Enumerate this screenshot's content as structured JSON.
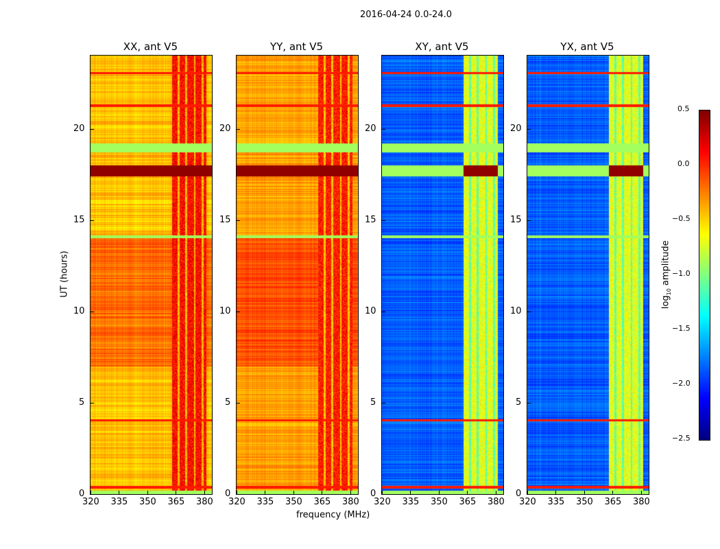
{
  "figure_title": "2016-04-24 0.0-24.0",
  "chart_data": {
    "type": "heatmap",
    "xlabel": "frequency (MHz)",
    "ylabel": "UT (hours)",
    "xlim": [
      320,
      384
    ],
    "ylim": [
      0,
      24
    ],
    "xticks": [
      "320",
      "335",
      "350",
      "365",
      "380"
    ],
    "yticks": [
      "0",
      "5",
      "10",
      "15",
      "20"
    ],
    "colormap": "jet",
    "colorbar": {
      "label": "log10 amplitude",
      "label_main": "log",
      "label_sub": "10",
      "label_rest": " amplitude",
      "range": [
        -2.5,
        0.5
      ],
      "ticks": [
        "0.5",
        "0.0",
        "−0.5",
        "−1.0",
        "−1.5",
        "−2.0",
        "−2.5"
      ]
    },
    "panels": [
      {
        "title": "XX, ant V5",
        "baseline": -0.45,
        "band_level": 0.1,
        "bright_band_mhz": [
          363,
          381
        ]
      },
      {
        "title": "YY, ant V5",
        "baseline": -0.35,
        "band_level": 0.05,
        "bright_band_mhz": [
          363,
          381
        ]
      },
      {
        "title": "XY, ant V5",
        "baseline": -1.85,
        "band_level": -0.7,
        "bright_band_mhz": [
          363,
          381
        ]
      },
      {
        "title": "YX, ant V5",
        "baseline": -1.85,
        "band_level": -0.7,
        "bright_band_mhz": [
          363,
          381
        ]
      }
    ],
    "horizontal_features_hours": [
      {
        "range": [
          0.0,
          0.2
        ],
        "value": -0.9
      },
      {
        "range": [
          0.3,
          0.45
        ],
        "value": 0.05
      },
      {
        "range": [
          14.0,
          14.15
        ],
        "value": -0.9
      },
      {
        "range": [
          17.4,
          18.0
        ],
        "value": 0.45
      },
      {
        "range": [
          18.7,
          19.2
        ],
        "value": -0.9
      },
      {
        "range": [
          21.2,
          21.35
        ],
        "value": 0.05
      },
      {
        "range": [
          4.0,
          4.1
        ],
        "value": 0.05
      },
      {
        "range": [
          23.0,
          23.1
        ],
        "value": 0.05
      }
    ]
  }
}
